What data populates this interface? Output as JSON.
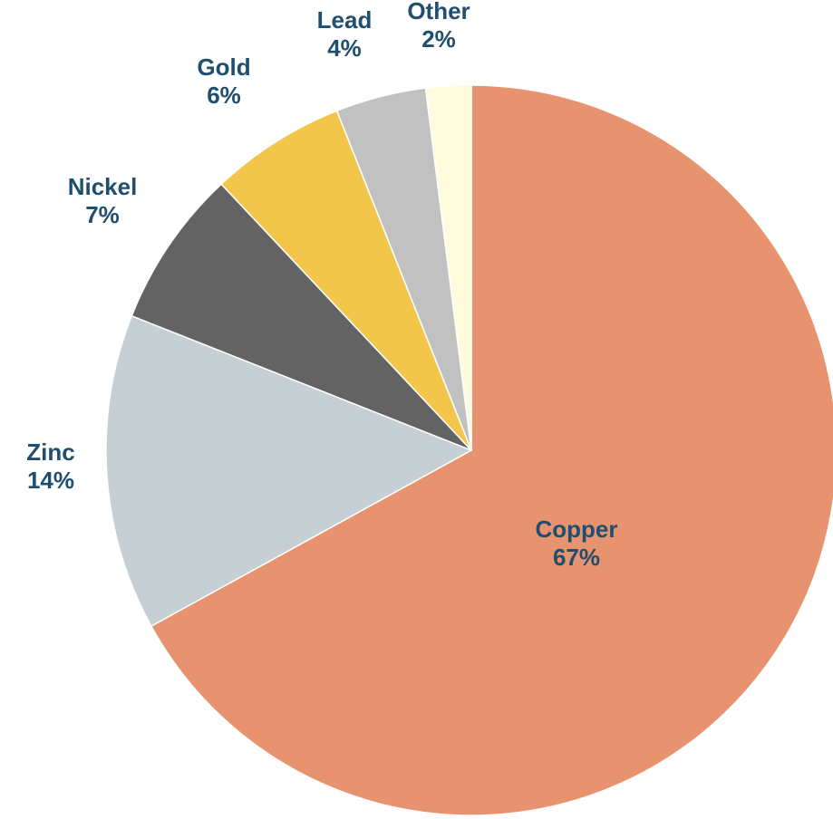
{
  "chart_data": {
    "type": "pie",
    "title": "",
    "start": "12 o'clock",
    "direction": "clockwise",
    "slices": [
      {
        "label": "Copper",
        "value": 67,
        "value_label": "67%",
        "color": "#e8936f"
      },
      {
        "label": "Zinc",
        "value": 14,
        "value_label": "14%",
        "color": "#c5cfd4"
      },
      {
        "label": "Nickel",
        "value": 7,
        "value_label": "7%",
        "color": "#636363"
      },
      {
        "label": "Gold",
        "value": 6,
        "value_label": "6%",
        "color": "#f2c54b"
      },
      {
        "label": "Lead",
        "value": 4,
        "value_label": "4%",
        "color": "#c1c1c1"
      },
      {
        "label": "Other",
        "value": 2,
        "value_label": "2%",
        "color": "#fefcdc"
      }
    ]
  }
}
